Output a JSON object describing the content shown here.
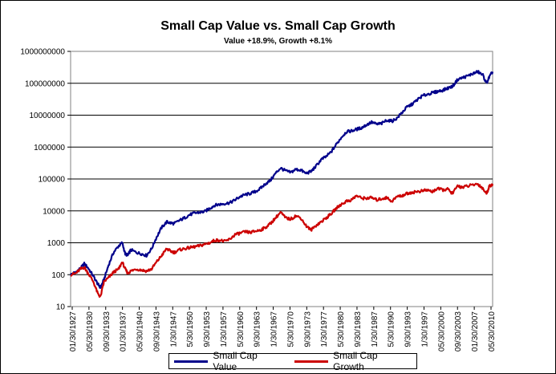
{
  "chart_data": {
    "type": "line",
    "title": "Small Cap Value vs. Small Cap Growth",
    "subtitle": "Value +18.9%, Growth +8.1%",
    "yscale": "log",
    "ylim": [
      10,
      1000000000
    ],
    "y_ticks": [
      "10",
      "100",
      "1000",
      "10000",
      "100000",
      "1000000",
      "10000000",
      "100000000",
      "1000000000"
    ],
    "x_range": [
      1927.0,
      2010.42
    ],
    "x_ticks": [
      "01/30/1927",
      "05/30/1930",
      "09/30/1933",
      "01/30/1937",
      "05/30/1940",
      "09/30/1943",
      "1/30/1947",
      "5/30/1950",
      "9/30/1953",
      "1/30/1957",
      "5/30/1960",
      "9/30/1963",
      "1/30/1967",
      "5/30/1970",
      "9/30/1973",
      "1/30/1977",
      "5/30/1980",
      "9/30/1983",
      "1/30/1987",
      "5/30/1990",
      "9/30/1993",
      "1/30/1997",
      "05/30/2000",
      "09/30/2003",
      "01/30/2007",
      "05/30/2010"
    ],
    "grid": true,
    "legend_position": "bottom",
    "series": [
      {
        "name": "Small Cap Value",
        "color": "#00008b",
        "x": [
          1927.0,
          1928.0,
          1929.0,
          1929.7,
          1930.5,
          1931.5,
          1932.4,
          1932.9,
          1933.6,
          1934.5,
          1935.5,
          1936.5,
          1937.2,
          1937.8,
          1938.3,
          1938.9,
          1940.0,
          1941.0,
          1942.0,
          1943.0,
          1944.0,
          1945.0,
          1946.0,
          1946.7,
          1947.5,
          1948.5,
          1949.5,
          1950.5,
          1951.5,
          1952.5,
          1953.5,
          1954.5,
          1955.5,
          1956.5,
          1957.5,
          1958.5,
          1959.5,
          1960.5,
          1961.5,
          1962.5,
          1963.5,
          1964.5,
          1965.5,
          1966.5,
          1967.5,
          1968.5,
          1969.5,
          1970.5,
          1971.5,
          1972.5,
          1973.5,
          1974.5,
          1975.5,
          1976.5,
          1977.5,
          1978.5,
          1979.5,
          1980.5,
          1981.5,
          1982.5,
          1983.5,
          1984.5,
          1985.5,
          1986.5,
          1987.5,
          1988.5,
          1989.5,
          1990.5,
          1991.5,
          1992.5,
          1993.5,
          1994.5,
          1995.5,
          1996.5,
          1997.5,
          1998.5,
          1999.5,
          2000.5,
          2001.5,
          2002.5,
          2003.5,
          2004.5,
          2005.5,
          2006.5,
          2007.5,
          2008.5,
          2009.2,
          2009.8,
          2010.42
        ],
        "values": [
          100,
          120,
          160,
          220,
          160,
          90,
          50,
          40,
          70,
          200,
          500,
          800,
          1000,
          450,
          400,
          600,
          500,
          450,
          400,
          650,
          1500,
          3000,
          4500,
          4200,
          4000,
          5000,
          6000,
          7500,
          8500,
          9000,
          9500,
          12000,
          15000,
          16000,
          17000,
          18000,
          22000,
          28000,
          32000,
          35000,
          40000,
          50000,
          70000,
          90000,
          150000,
          220000,
          180000,
          160000,
          200000,
          190000,
          150000,
          170000,
          250000,
          400000,
          500000,
          700000,
          1200000,
          2000000,
          3000000,
          3200000,
          3600000,
          4000000,
          5000000,
          6000000,
          5200000,
          5500000,
          7000000,
          6500000,
          8000000,
          12000000,
          18000000,
          22000000,
          30000000,
          40000000,
          45000000,
          50000000,
          55000000,
          60000000,
          70000000,
          80000000,
          130000000,
          150000000,
          170000000,
          200000000,
          230000000,
          180000000,
          100000000,
          160000000,
          230000000
        ]
      },
      {
        "name": "Small Cap Growth",
        "color": "#cc0000",
        "x": [
          1927.0,
          1928.0,
          1929.0,
          1929.7,
          1930.5,
          1931.5,
          1932.4,
          1932.9,
          1933.6,
          1934.5,
          1935.5,
          1936.5,
          1937.2,
          1937.8,
          1938.3,
          1938.9,
          1940.0,
          1941.0,
          1942.0,
          1943.0,
          1944.0,
          1945.0,
          1946.0,
          1946.7,
          1947.5,
          1948.5,
          1949.5,
          1950.5,
          1951.5,
          1952.5,
          1953.5,
          1954.5,
          1955.5,
          1956.5,
          1957.5,
          1958.5,
          1959.5,
          1960.5,
          1961.5,
          1962.5,
          1963.5,
          1964.5,
          1965.5,
          1966.5,
          1967.5,
          1968.5,
          1969.5,
          1970.5,
          1971.5,
          1972.5,
          1973.5,
          1974.5,
          1975.5,
          1976.5,
          1977.5,
          1978.5,
          1979.5,
          1980.5,
          1981.5,
          1982.5,
          1983.5,
          1984.5,
          1985.5,
          1986.5,
          1987.5,
          1988.5,
          1989.5,
          1990.5,
          1991.5,
          1992.5,
          1993.5,
          1994.5,
          1995.5,
          1996.5,
          1997.5,
          1998.5,
          1999.5,
          2000.5,
          2001.5,
          2002.5,
          2003.5,
          2004.5,
          2005.5,
          2006.5,
          2007.5,
          2008.5,
          2009.2,
          2009.8,
          2010.42
        ],
        "values": [
          100,
          110,
          150,
          170,
          110,
          60,
          25,
          20,
          60,
          80,
          120,
          150,
          250,
          150,
          110,
          130,
          150,
          140,
          130,
          150,
          250,
          400,
          650,
          550,
          500,
          600,
          650,
          700,
          750,
          800,
          900,
          1000,
          1200,
          1200,
          1100,
          1300,
          1800,
          2000,
          2200,
          2100,
          2300,
          2500,
          3000,
          4000,
          6000,
          9000,
          6000,
          5500,
          7000,
          6000,
          3500,
          2500,
          3500,
          4500,
          6000,
          8000,
          12000,
          16000,
          20000,
          22000,
          30000,
          25000,
          25000,
          26000,
          22000,
          24000,
          26000,
          20000,
          28000,
          30000,
          35000,
          38000,
          40000,
          42000,
          45000,
          40000,
          50000,
          45000,
          48000,
          35000,
          60000,
          55000,
          60000,
          65000,
          70000,
          50000,
          35000,
          60000,
          70000
        ]
      }
    ]
  }
}
